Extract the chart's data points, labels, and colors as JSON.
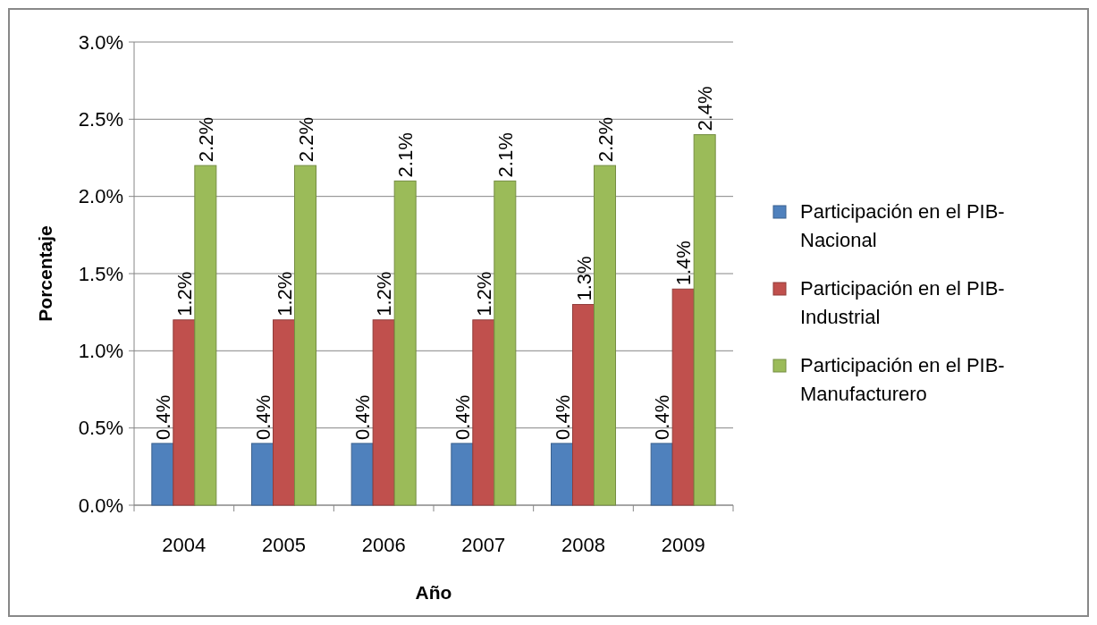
{
  "chart_data": {
    "type": "bar",
    "xlabel": "Año",
    "ylabel": "Porcentaje",
    "categories": [
      "2004",
      "2005",
      "2006",
      "2007",
      "2008",
      "2009"
    ],
    "series": [
      {
        "name": "Participación en el PIB-Nacional",
        "color": "#4f81bd",
        "values": [
          0.4,
          0.4,
          0.4,
          0.4,
          0.4,
          0.4
        ],
        "value_labels": [
          "0.4%",
          "0.4%",
          "0.4%",
          "0.4%",
          "0.4%",
          "0.4%"
        ]
      },
      {
        "name": "Participación en el PIB-Industrial",
        "color": "#c0504d",
        "values": [
          1.2,
          1.2,
          1.2,
          1.2,
          1.3,
          1.4
        ],
        "value_labels": [
          "1.2%",
          "1.2%",
          "1.2%",
          "1.2%",
          "1.3%",
          "1.4%"
        ]
      },
      {
        "name": "Participación en el PIB-Manufacturero",
        "color": "#9bbb59",
        "values": [
          2.2,
          2.2,
          2.1,
          2.1,
          2.2,
          2.4
        ],
        "value_labels": [
          "2.2%",
          "2.2%",
          "2.1%",
          "2.1%",
          "2.2%",
          "2.4%"
        ]
      }
    ],
    "ylim": [
      0,
      3
    ],
    "yticks": [
      {
        "value": 0,
        "label": "0.0%"
      },
      {
        "value": 0.5,
        "label": "0.5%"
      },
      {
        "value": 1,
        "label": "1.0%"
      },
      {
        "value": 1.5,
        "label": "1.5%"
      },
      {
        "value": 2,
        "label": "2.0%"
      },
      {
        "value": 2.5,
        "label": "2.5%"
      },
      {
        "value": 3,
        "label": "3.0%"
      }
    ],
    "grid": "y",
    "legend": "right"
  }
}
